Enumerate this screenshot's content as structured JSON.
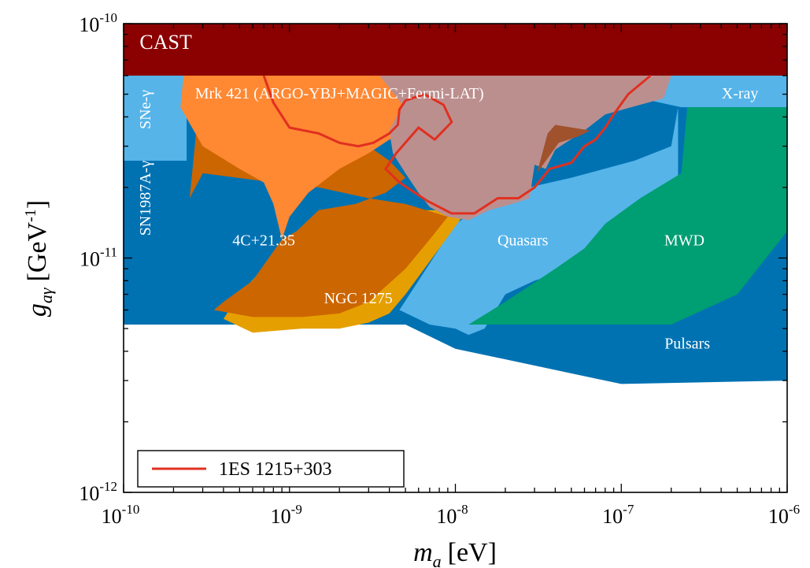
{
  "chart_data": {
    "type": "area",
    "x_scale": "log",
    "y_scale": "log",
    "xlim": [
      1e-10,
      1e-06
    ],
    "ylim": [
      1e-12,
      1e-10
    ],
    "grid": false,
    "legend_position": "bottom-left",
    "xlabel": {
      "base": "m",
      "sub": "a",
      "unit": "[eV]"
    },
    "ylabel": {
      "base": "g",
      "sub": "aγ",
      "unit": "[GeV",
      "exp": "-1",
      "close": "]"
    },
    "x_ticks": [
      {
        "base": "10",
        "exp": "-10"
      },
      {
        "base": "10",
        "exp": "-9"
      },
      {
        "base": "10",
        "exp": "-8"
      },
      {
        "base": "10",
        "exp": "-7"
      },
      {
        "base": "10",
        "exp": "-6"
      }
    ],
    "y_ticks": [
      {
        "base": "10",
        "exp": "-12"
      },
      {
        "base": "10",
        "exp": "-11"
      },
      {
        "base": "10",
        "exp": "-10"
      }
    ],
    "regions": [
      {
        "name": "SN1987A-γ",
        "color": "#0072b2",
        "label": "SN1987A-γ",
        "rotated": true,
        "points": [
          [
            1e-10,
            5.2e-12
          ],
          [
            1e-09,
            5.2e-12
          ],
          [
            5e-09,
            5.2e-12
          ],
          [
            1e-08,
            4.1e-12
          ],
          [
            1e-07,
            2.9e-12
          ],
          [
            1e-06,
            3e-12
          ],
          [
            1e-06,
            6e-11
          ],
          [
            1e-10,
            6e-11
          ]
        ]
      },
      {
        "name": "Pulsars",
        "color": "#0072b2",
        "label": "Pulsars",
        "points": []
      },
      {
        "name": "SNe-γ",
        "color": "#56b4e9",
        "label": "SNe-γ",
        "rotated": true,
        "points": [
          [
            1e-10,
            6e-11
          ],
          [
            1e-06,
            6e-11
          ],
          [
            1e-06,
            4.4e-11
          ],
          [
            2.3e-07,
            4.4e-11
          ],
          [
            1e-07,
            5e-11
          ],
          [
            5e-08,
            6e-11
          ],
          [
            1e-10,
            6e-11
          ],
          [
            1e-10,
            2.6e-11
          ],
          [
            2.4e-10,
            2.6e-11
          ],
          [
            2.4e-10,
            6e-11
          ]
        ]
      },
      {
        "name": "X-ray",
        "color": "#56b4e9",
        "label": "X-ray",
        "points": [
          [
            2e-08,
            6e-11
          ],
          [
            1e-06,
            6e-11
          ],
          [
            1e-06,
            4.4e-11
          ],
          [
            4e-07,
            4.4e-11
          ],
          [
            2e-07,
            4.5e-11
          ],
          [
            1e-07,
            5.2e-11
          ],
          [
            5e-08,
            6e-11
          ]
        ]
      },
      {
        "name": "Quasars",
        "color": "#56b4e9",
        "label": "Quasars",
        "points": [
          [
            4.6e-09,
            6e-12
          ],
          [
            6e-09,
            8e-12
          ],
          [
            1e-08,
            1.4e-11
          ],
          [
            2e-08,
            1.9e-11
          ],
          [
            5e-08,
            2.2e-11
          ],
          [
            1.2e-07,
            2.6e-11
          ],
          [
            2e-07,
            3e-11
          ],
          [
            2.2e-07,
            4.4e-11
          ],
          [
            2.2e-07,
            1.3e-11
          ],
          [
            1.5e-07,
            1.2e-11
          ],
          [
            8e-08,
            1.05e-11
          ],
          [
            5e-08,
            9e-12
          ],
          [
            3e-08,
            8e-12
          ],
          [
            2e-08,
            7e-12
          ],
          [
            1.5e-08,
            5e-12
          ],
          [
            1.2e-08,
            4.7e-12
          ],
          [
            1e-08,
            5e-12
          ],
          [
            7e-09,
            5.2e-12
          ]
        ]
      },
      {
        "name": "MWD",
        "color": "#009e73",
        "label": "MWD",
        "points": [
          [
            1e-08,
            5.2e-12
          ],
          [
            2e-07,
            5.2e-12
          ],
          [
            5e-07,
            7e-12
          ],
          [
            1e-06,
            1.3e-11
          ],
          [
            1e-06,
            4.4e-11
          ],
          [
            2.5e-07,
            4.4e-11
          ],
          [
            2.3e-07,
            2.3e-11
          ],
          [
            1.3e-07,
            1.8e-11
          ],
          [
            8e-08,
            1.4e-11
          ],
          [
            6e-08,
            1.1e-11
          ],
          [
            4e-08,
            9e-12
          ],
          [
            2e-08,
            6.5e-12
          ],
          [
            1.2e-08,
            5.2e-12
          ]
        ]
      },
      {
        "name": "NGC 1275",
        "color": "#e69f00",
        "label": "NGC 1275",
        "points": [
          [
            6e-10,
            4.8e-12
          ],
          [
            1.2e-09,
            5e-12
          ],
          [
            2e-09,
            5e-12
          ],
          [
            3e-09,
            5.3e-12
          ],
          [
            4e-09,
            5.8e-12
          ],
          [
            5e-09,
            7e-12
          ],
          [
            8e-09,
            1.1e-11
          ],
          [
            1.1e-08,
            1.5e-11
          ],
          [
            8e-09,
            1.6e-11
          ],
          [
            4e-09,
            1.6e-11
          ],
          [
            1e-09,
            1.2e-11
          ],
          [
            5e-10,
            7e-12
          ],
          [
            4e-10,
            5.5e-12
          ]
        ]
      },
      {
        "name": "4C+21.35",
        "color": "#cc6600",
        "label": "4C+21.35",
        "points": [
          [
            3.5e-10,
            6e-12
          ],
          [
            6e-10,
            5.6e-12
          ],
          [
            1.2e-09,
            5.6e-12
          ],
          [
            2e-09,
            5.8e-12
          ],
          [
            3e-09,
            6.5e-12
          ],
          [
            5e-09,
            9e-12
          ],
          [
            7e-09,
            1.2e-11
          ],
          [
            9e-09,
            1.5e-11
          ],
          [
            5e-09,
            1.7e-11
          ],
          [
            3e-09,
            1.8e-11
          ],
          [
            1.5e-09,
            2e-11
          ],
          [
            8e-10,
            2.1e-11
          ],
          [
            3e-10,
            2.3e-11
          ],
          [
            2.5e-10,
            1.8e-11
          ],
          [
            2.8e-10,
            4e-11
          ],
          [
            2.4e-10,
            6e-11
          ],
          [
            4e-10,
            6e-11
          ],
          [
            5e-10,
            5e-11
          ],
          [
            1e-09,
            4e-11
          ],
          [
            2e-09,
            3.4e-11
          ],
          [
            3e-09,
            3e-11
          ],
          [
            4e-09,
            2.6e-11
          ],
          [
            5e-09,
            2.2e-11
          ],
          [
            3.8e-09,
            1.9e-11
          ],
          [
            2.5e-09,
            1.7e-11
          ],
          [
            1.5e-09,
            1.6e-11
          ],
          [
            1.1e-09,
            1.3e-11
          ],
          [
            9e-10,
            1.2e-11
          ],
          [
            6e-10,
            8e-12
          ],
          [
            4e-10,
            6.5e-12
          ]
        ]
      },
      {
        "name": "Mrk 421 (ARGO-YBJ+MAGIC+Fermi-LAT)",
        "color": "#ff8833",
        "label": "Mrk 421 (ARGO-YBJ+MAGIC+Fermi-LAT)",
        "points": [
          [
            2.3e-10,
            6e-11
          ],
          [
            2.2e-10,
            4.4e-11
          ],
          [
            3e-10,
            3e-11
          ],
          [
            5e-10,
            2.4e-11
          ],
          [
            7e-10,
            2.1e-11
          ],
          [
            8e-10,
            1.7e-11
          ],
          [
            9e-10,
            1.2e-11
          ],
          [
            1e-09,
            1.5e-11
          ],
          [
            1.3e-09,
            1.9e-11
          ],
          [
            2e-09,
            2.4e-11
          ],
          [
            3e-09,
            2.8e-11
          ],
          [
            4e-09,
            3.2e-11
          ],
          [
            6e-09,
            3.5e-11
          ],
          [
            8e-09,
            3e-11
          ],
          [
            1e-08,
            2.8e-11
          ],
          [
            3e-08,
            3.6e-11
          ],
          [
            5e-08,
            4.2e-11
          ],
          [
            1e-07,
            4.8e-11
          ],
          [
            2e-07,
            6e-11
          ]
        ]
      },
      {
        "name": "Mrk 421 brown",
        "color": "#bc8f8f",
        "label": "",
        "points": [
          [
            3.5e-09,
            6e-11
          ],
          [
            2e-07,
            6e-11
          ],
          [
            1.8e-07,
            4.8e-11
          ],
          [
            8e-08,
            4.1e-11
          ],
          [
            6e-08,
            3.5e-11
          ],
          [
            4e-08,
            2.9e-11
          ],
          [
            3.5e-08,
            2.4e-11
          ],
          [
            3e-08,
            2.5e-11
          ],
          [
            2.8e-08,
            1.8e-11
          ],
          [
            2.2e-08,
            1.7e-11
          ],
          [
            1.6e-08,
            1.6e-11
          ],
          [
            1.2e-08,
            1.45e-11
          ],
          [
            9e-09,
            1.5e-11
          ],
          [
            7e-09,
            1.65e-11
          ],
          [
            6e-09,
            1.9e-11
          ],
          [
            5e-09,
            2.3e-11
          ],
          [
            4.2e-09,
            2.8e-11
          ],
          [
            4e-09,
            3.5e-11
          ],
          [
            4.8e-09,
            4.5e-11
          ]
        ]
      },
      {
        "name": "overlap dark",
        "color": "#a0522d",
        "label": "",
        "points": [
          [
            3.1e-08,
            2.3e-11
          ],
          [
            4.2e-08,
            3.1e-11
          ],
          [
            5.5e-08,
            3.3e-11
          ],
          [
            6.5e-08,
            3.5e-11
          ],
          [
            4e-08,
            3.7e-11
          ],
          [
            3.6e-08,
            3.4e-11
          ]
        ]
      },
      {
        "name": "CAST",
        "color": "#8b0000",
        "label": "CAST",
        "points": [
          [
            1e-10,
            6e-11
          ],
          [
            1e-06,
            6e-11
          ],
          [
            1e-06,
            1e-10
          ],
          [
            1e-10,
            1e-10
          ]
        ]
      }
    ],
    "series": [
      {
        "name": "1ES 1215+303",
        "color": "#e03020",
        "type": "line",
        "x": [
          7e-10,
          8e-10,
          1e-09,
          1.5e-09,
          2e-09,
          2.6e-09,
          3.2e-09,
          4e-09,
          4.5e-09,
          4.6e-09,
          5e-09,
          6.5e-09,
          8.5e-09,
          9.5e-09,
          7.5e-09,
          6e-09,
          4.4e-09,
          3.8e-09,
          4.6e-09,
          6.8e-09,
          9.5e-09,
          1.3e-08,
          1.8e-08,
          2.4e-08,
          3e-08,
          3.7e-08,
          5e-08,
          6e-08,
          7e-08,
          8e-08,
          9e-08,
          1.1e-07,
          1.5e-07
        ],
        "y": [
          6e-11,
          4.6e-11,
          3.6e-11,
          3.4e-11,
          3.1e-11,
          3e-11,
          3.1e-11,
          3.4e-11,
          3.7e-11,
          4.3e-11,
          4.7e-11,
          5e-11,
          4.5e-11,
          3.8e-11,
          3.2e-11,
          3.6e-11,
          2.8e-11,
          2.4e-11,
          2.1e-11,
          1.75e-11,
          1.55e-11,
          1.55e-11,
          1.8e-11,
          1.8e-11,
          2e-11,
          2.4e-11,
          2.55e-11,
          3e-11,
          3.2e-11,
          3.6e-11,
          4.1e-11,
          5e-11,
          6e-11
        ]
      }
    ]
  }
}
